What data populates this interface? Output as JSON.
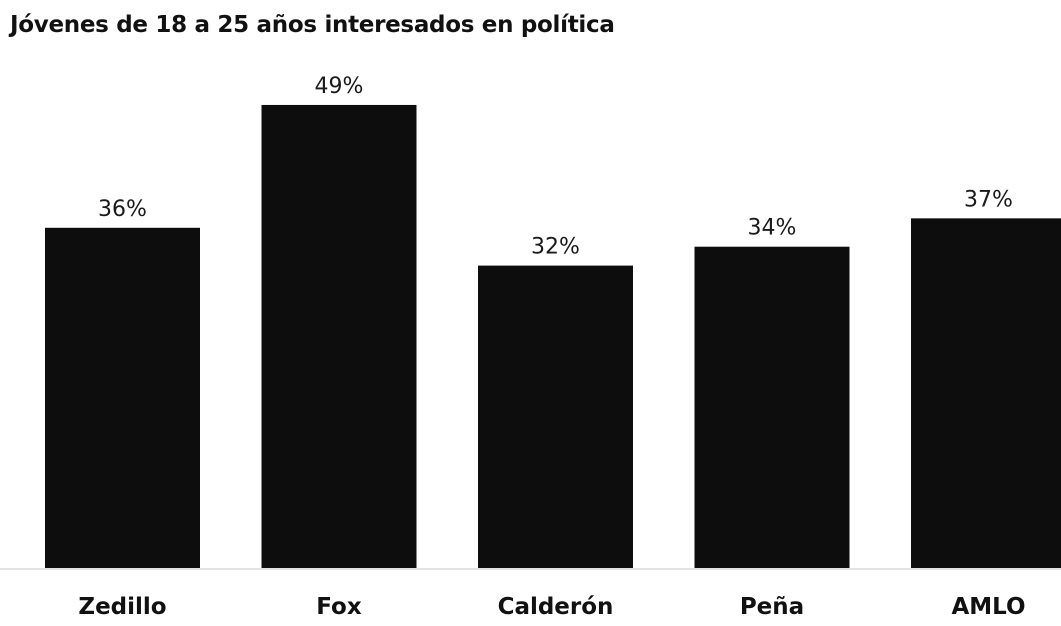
{
  "chart_data": {
    "type": "bar",
    "title": "Jóvenes de 18 a 25 años interesados en política",
    "categories": [
      "Zedillo",
      "Fox",
      "Calderón",
      "Peña",
      "AMLO"
    ],
    "values": [
      36,
      49,
      32,
      34,
      37
    ],
    "value_labels": [
      "36%",
      "49%",
      "32%",
      "34%",
      "37%"
    ],
    "bar_color": "#0d0d0d",
    "baseline_color": "#d8d8d8",
    "grid": false,
    "legend": "none"
  }
}
